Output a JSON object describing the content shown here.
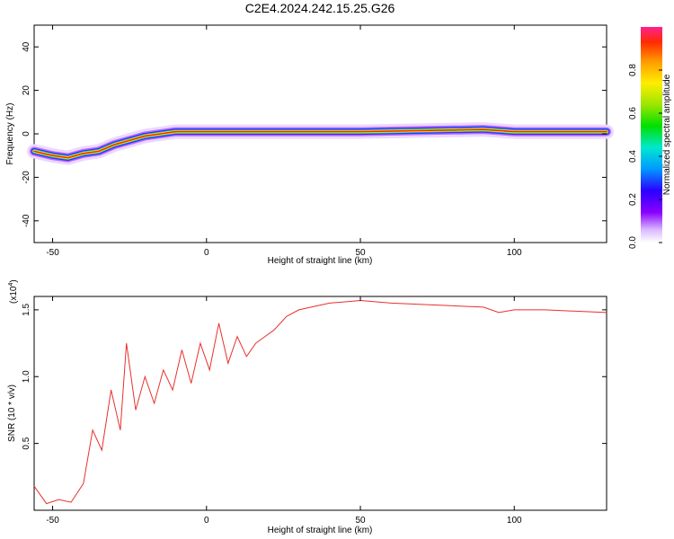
{
  "figure": {
    "title": "C2E4.2024.242.15.25.G26"
  },
  "chart_data": [
    {
      "type": "heatmap",
      "xlabel": "Height of straight line (km)",
      "ylabel": "Frequency (Hz)",
      "xlim": [
        -56,
        130
      ],
      "ylim": [
        -50,
        50
      ],
      "xticks": [
        -50,
        0,
        50,
        100
      ],
      "yticks": [
        -40,
        -20,
        0,
        20,
        40
      ],
      "colorbar": {
        "label": "Normalized spectral amplitude",
        "range": [
          0,
          1
        ],
        "ticks": [
          0.0,
          0.2,
          0.4,
          0.6,
          0.8
        ]
      },
      "ridge": [
        {
          "x": -56,
          "y": -8
        },
        {
          "x": -50,
          "y": -10
        },
        {
          "x": -45,
          "y": -11
        },
        {
          "x": -40,
          "y": -9
        },
        {
          "x": -35,
          "y": -8
        },
        {
          "x": -30,
          "y": -5
        },
        {
          "x": -25,
          "y": -3
        },
        {
          "x": -20,
          "y": -1
        },
        {
          "x": -15,
          "y": 0
        },
        {
          "x": -10,
          "y": 1
        },
        {
          "x": -5,
          "y": 1
        },
        {
          "x": 0,
          "y": 1
        },
        {
          "x": 50,
          "y": 1
        },
        {
          "x": 90,
          "y": 2
        },
        {
          "x": 100,
          "y": 1
        },
        {
          "x": 130,
          "y": 1
        }
      ]
    },
    {
      "type": "line",
      "xlabel": "Height of straight line (km)",
      "ylabel": "SNR (10 * v/v)",
      "yscale_label": "(x10",
      "yscale_exp": "4",
      "xlim": [
        -56,
        130
      ],
      "ylim": [
        0,
        1.6
      ],
      "xticks": [
        -50,
        0,
        50,
        100
      ],
      "yticks": [
        0.5,
        1.0,
        1.5
      ],
      "color": "#e8302c",
      "series": [
        {
          "x": -56,
          "y": 0.18
        },
        {
          "x": -52,
          "y": 0.05
        },
        {
          "x": -48,
          "y": 0.08
        },
        {
          "x": -44,
          "y": 0.06
        },
        {
          "x": -40,
          "y": 0.2
        },
        {
          "x": -37,
          "y": 0.6
        },
        {
          "x": -34,
          "y": 0.45
        },
        {
          "x": -31,
          "y": 0.9
        },
        {
          "x": -28,
          "y": 0.6
        },
        {
          "x": -26,
          "y": 1.25
        },
        {
          "x": -23,
          "y": 0.75
        },
        {
          "x": -20,
          "y": 1.0
        },
        {
          "x": -17,
          "y": 0.8
        },
        {
          "x": -14,
          "y": 1.05
        },
        {
          "x": -11,
          "y": 0.9
        },
        {
          "x": -8,
          "y": 1.2
        },
        {
          "x": -5,
          "y": 0.95
        },
        {
          "x": -2,
          "y": 1.25
        },
        {
          "x": 1,
          "y": 1.05
        },
        {
          "x": 4,
          "y": 1.4
        },
        {
          "x": 7,
          "y": 1.1
        },
        {
          "x": 10,
          "y": 1.3
        },
        {
          "x": 13,
          "y": 1.15
        },
        {
          "x": 16,
          "y": 1.25
        },
        {
          "x": 19,
          "y": 1.3
        },
        {
          "x": 22,
          "y": 1.35
        },
        {
          "x": 26,
          "y": 1.45
        },
        {
          "x": 30,
          "y": 1.5
        },
        {
          "x": 40,
          "y": 1.55
        },
        {
          "x": 50,
          "y": 1.57
        },
        {
          "x": 60,
          "y": 1.55
        },
        {
          "x": 70,
          "y": 1.54
        },
        {
          "x": 80,
          "y": 1.53
        },
        {
          "x": 90,
          "y": 1.52
        },
        {
          "x": 95,
          "y": 1.48
        },
        {
          "x": 100,
          "y": 1.5
        },
        {
          "x": 110,
          "y": 1.5
        },
        {
          "x": 120,
          "y": 1.49
        },
        {
          "x": 130,
          "y": 1.48
        }
      ]
    }
  ]
}
